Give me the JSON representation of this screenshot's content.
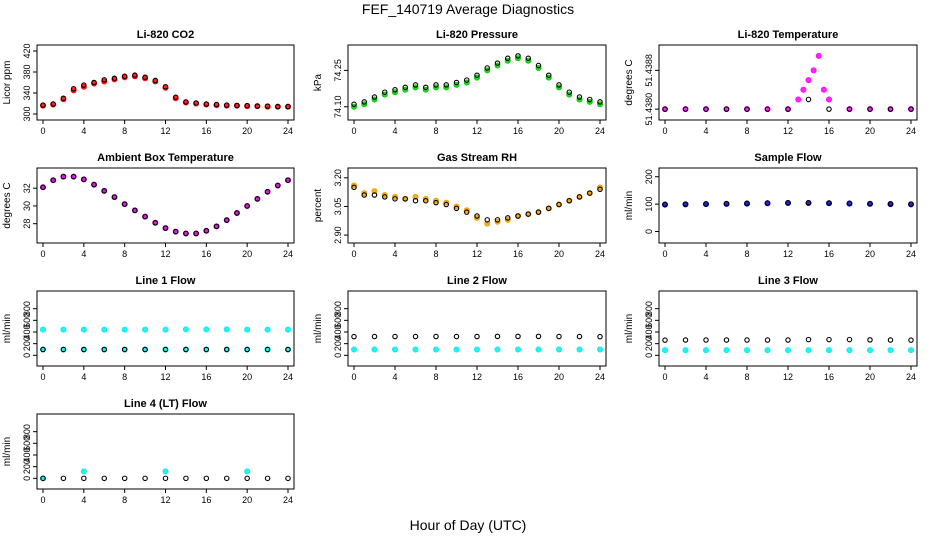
{
  "figure": {
    "title": "FEF_140719  Average Diagnostics",
    "xlabel": "Hour of Day (UTC)"
  },
  "chart_data": [
    {
      "type": "scatter",
      "title": "Li-820 CO2",
      "ylabel": "Licor ppm",
      "xlim": [
        0,
        24
      ],
      "ylim": [
        300,
        420
      ],
      "xticks": [
        "0",
        "4",
        "8",
        "12",
        "16",
        "20",
        "24"
      ],
      "yticks": [
        "300",
        "340",
        "380",
        "420"
      ],
      "series": [
        {
          "color": "#ff0000",
          "x": [
            0,
            1,
            2,
            3,
            4,
            5,
            6,
            7,
            8,
            9,
            10,
            11,
            12,
            13,
            14,
            15,
            16,
            17,
            18,
            19,
            20,
            21,
            22,
            23,
            24
          ],
          "y": [
            316,
            318,
            328,
            345,
            352,
            358,
            362,
            366,
            370,
            372,
            368,
            362,
            350,
            330,
            322,
            320,
            318,
            317,
            316,
            316,
            315,
            315,
            314,
            314,
            314
          ]
        },
        {
          "color": "#000000",
          "x": [
            0,
            1,
            2,
            3,
            4,
            5,
            6,
            7,
            8,
            9,
            10,
            11,
            12,
            13,
            14,
            15,
            16,
            17,
            18,
            19,
            20,
            21,
            22,
            23,
            24
          ],
          "y": [
            317,
            319,
            330,
            348,
            355,
            360,
            365,
            368,
            372,
            374,
            370,
            364,
            352,
            332,
            323,
            321,
            319,
            318,
            317,
            316,
            316,
            315,
            315,
            314,
            314
          ]
        }
      ]
    },
    {
      "type": "scatter",
      "title": "Li-820 Pressure",
      "ylabel": "kPa",
      "xlim": [
        0,
        24
      ],
      "ylim": [
        74.07,
        74.33
      ],
      "xticks": [
        "0",
        "4",
        "8",
        "12",
        "16",
        "20",
        "24"
      ],
      "yticks": [
        "74.10",
        "74.25"
      ],
      "series": [
        {
          "color": "#00cc00",
          "x": [
            0,
            1,
            2,
            3,
            4,
            5,
            6,
            7,
            8,
            9,
            10,
            11,
            12,
            13,
            14,
            15,
            16,
            17,
            18,
            19,
            20,
            21,
            22,
            23,
            24
          ],
          "y": [
            74.1,
            74.11,
            74.13,
            74.15,
            74.16,
            74.17,
            74.18,
            74.17,
            74.18,
            74.18,
            74.19,
            74.2,
            74.22,
            74.25,
            74.27,
            74.29,
            74.3,
            74.29,
            74.26,
            74.22,
            74.18,
            74.15,
            74.13,
            74.12,
            74.11
          ]
        },
        {
          "color": "#000000",
          "x": [
            0,
            1,
            2,
            3,
            4,
            5,
            6,
            7,
            8,
            9,
            10,
            11,
            12,
            13,
            14,
            15,
            16,
            17,
            18,
            19,
            20,
            21,
            22,
            23,
            24
          ],
          "y": [
            74.11,
            74.12,
            74.14,
            74.16,
            74.17,
            74.18,
            74.19,
            74.18,
            74.19,
            74.19,
            74.2,
            74.21,
            74.23,
            74.26,
            74.28,
            74.3,
            74.31,
            74.3,
            74.27,
            74.23,
            74.19,
            74.16,
            74.14,
            74.13,
            74.12
          ]
        }
      ]
    },
    {
      "type": "scatter",
      "title": "Li-820 Temperature",
      "ylabel": "degrees C",
      "xlim": [
        0,
        24
      ],
      "ylim": [
        51.4379,
        51.4392
      ],
      "xticks": [
        "0",
        "4",
        "8",
        "12",
        "16",
        "20",
        "24"
      ],
      "yticks": [
        "51.4380",
        "51.4388"
      ],
      "series": [
        {
          "color": "#ff00ff",
          "x": [
            0,
            2,
            4,
            6,
            8,
            10,
            12,
            13,
            13.5,
            14,
            14.5,
            15,
            15.5,
            16,
            18,
            20,
            22,
            24
          ],
          "y": [
            51.438,
            51.438,
            51.438,
            51.438,
            51.438,
            51.438,
            51.438,
            51.4382,
            51.4384,
            51.4386,
            51.4388,
            51.4391,
            51.4384,
            51.4382,
            51.438,
            51.438,
            51.438,
            51.438
          ]
        },
        {
          "color": "#000000",
          "x": [
            0,
            2,
            4,
            6,
            8,
            10,
            12,
            14,
            16,
            18,
            20,
            22,
            24
          ],
          "y": [
            51.438,
            51.438,
            51.438,
            51.438,
            51.438,
            51.438,
            51.438,
            51.4382,
            51.438,
            51.438,
            51.438,
            51.438,
            51.438
          ]
        }
      ]
    },
    {
      "type": "scatter",
      "title": "Ambient Box Temperature",
      "ylabel": "degrees C",
      "xlim": [
        0,
        24
      ],
      "ylim": [
        26.5,
        33.6
      ],
      "xticks": [
        "0",
        "4",
        "8",
        "12",
        "16",
        "20",
        "24"
      ],
      "yticks": [
        "28",
        "30",
        "32"
      ],
      "series": [
        {
          "color": "#cc00cc",
          "x": [
            0,
            1,
            2,
            3,
            4,
            5,
            6,
            7,
            8,
            9,
            10,
            11,
            12,
            13,
            14,
            15,
            16,
            17,
            18,
            19,
            20,
            21,
            22,
            23,
            24
          ],
          "y": [
            32.1,
            32.9,
            33.3,
            33.3,
            33.0,
            32.4,
            31.7,
            31.0,
            30.2,
            29.5,
            28.8,
            28.1,
            27.5,
            27.1,
            26.9,
            26.9,
            27.2,
            27.7,
            28.4,
            29.2,
            30.0,
            30.8,
            31.6,
            32.3,
            32.9
          ]
        },
        {
          "color": "#000000",
          "x": [
            0,
            1,
            2,
            3,
            4,
            5,
            6,
            7,
            8,
            9,
            10,
            11,
            12,
            13,
            14,
            15,
            16,
            17,
            18,
            19,
            20,
            21,
            22,
            23,
            24
          ],
          "y": [
            32.1,
            32.9,
            33.3,
            33.3,
            33.0,
            32.4,
            31.7,
            31.0,
            30.2,
            29.5,
            28.8,
            28.1,
            27.5,
            27.1,
            26.9,
            26.9,
            27.2,
            27.7,
            28.4,
            29.2,
            30.0,
            30.8,
            31.6,
            32.3,
            32.9
          ]
        }
      ]
    },
    {
      "type": "scatter",
      "title": "Gas Stream RH",
      "ylabel": "percent",
      "xlim": [
        0,
        24
      ],
      "ylim": [
        2.89,
        3.22
      ],
      "xticks": [
        "0",
        "4",
        "8",
        "12",
        "16",
        "20",
        "24"
      ],
      "yticks": [
        "2.90",
        "3.05",
        "3.20"
      ],
      "series": [
        {
          "color": "#f0a000",
          "x": [
            0,
            1,
            2,
            3,
            4,
            5,
            6,
            7,
            8,
            9,
            10,
            11,
            12,
            13,
            14,
            15,
            16,
            17,
            18,
            19,
            20,
            21,
            22,
            23,
            24
          ],
          "y": [
            3.16,
            3.12,
            3.13,
            3.11,
            3.1,
            3.09,
            3.1,
            3.09,
            3.08,
            3.07,
            3.05,
            3.03,
            2.99,
            2.96,
            2.97,
            2.98,
            3.0,
            3.01,
            3.02,
            3.04,
            3.06,
            3.08,
            3.1,
            3.12,
            3.15
          ]
        },
        {
          "color": "#000000",
          "x": [
            0,
            1,
            2,
            3,
            4,
            5,
            6,
            7,
            8,
            9,
            10,
            11,
            12,
            13,
            14,
            15,
            16,
            17,
            18,
            19,
            20,
            21,
            22,
            23,
            24
          ],
          "y": [
            3.15,
            3.11,
            3.11,
            3.1,
            3.09,
            3.09,
            3.08,
            3.08,
            3.07,
            3.06,
            3.04,
            3.02,
            3.0,
            2.98,
            2.98,
            2.99,
            3.0,
            3.01,
            3.02,
            3.04,
            3.06,
            3.08,
            3.1,
            3.12,
            3.14
          ]
        }
      ]
    },
    {
      "type": "scatter",
      "title": "Sample Flow",
      "ylabel": "ml/min",
      "xlim": [
        0,
        24
      ],
      "ylim": [
        -20,
        210
      ],
      "xticks": [
        "0",
        "4",
        "8",
        "12",
        "16",
        "20",
        "24"
      ],
      "yticks": [
        "0",
        "100",
        "200"
      ],
      "series": [
        {
          "color": "#0000cc",
          "x": [
            0,
            2,
            4,
            6,
            8,
            10,
            12,
            14,
            16,
            18,
            20,
            22,
            24
          ],
          "y": [
            98,
            99,
            100,
            101,
            102,
            103,
            104,
            104,
            103,
            102,
            101,
            100,
            99
          ]
        },
        {
          "color": "#000000",
          "x": [
            0,
            2,
            4,
            6,
            8,
            10,
            12,
            14,
            16,
            18,
            20,
            22,
            24
          ],
          "y": [
            99,
            100,
            101,
            102,
            103,
            104,
            105,
            105,
            104,
            103,
            102,
            101,
            100
          ]
        }
      ]
    },
    {
      "type": "scatter",
      "title": "Line 1 Flow",
      "ylabel": "ml/min",
      "xlim": [
        0,
        24
      ],
      "ylim": [
        -80,
        1000
      ],
      "xticks": [
        "0",
        "4",
        "8",
        "12",
        "16",
        "20",
        "24"
      ],
      "yticks": [
        "0",
        "200",
        "400",
        "600",
        "800"
      ],
      "series": [
        {
          "color": "#00eeee",
          "x": [
            0,
            2,
            4,
            6,
            8,
            10,
            12,
            14,
            16,
            18,
            20,
            22,
            24
          ],
          "y": [
            440,
            440,
            440,
            440,
            440,
            440,
            440,
            445,
            445,
            445,
            440,
            440,
            440
          ]
        },
        {
          "color": "#00eeee",
          "x": [
            0,
            2,
            4,
            6,
            8,
            10,
            12,
            14,
            16,
            18,
            20,
            22,
            24
          ],
          "y": [
            100,
            100,
            100,
            100,
            100,
            100,
            100,
            100,
            100,
            100,
            100,
            100,
            100
          ]
        },
        {
          "color": "#000000",
          "x": [
            0,
            2,
            4,
            6,
            8,
            10,
            12,
            14,
            16,
            18,
            20,
            22,
            24
          ],
          "y": [
            100,
            100,
            100,
            100,
            100,
            100,
            100,
            100,
            100,
            100,
            100,
            100,
            100
          ]
        }
      ]
    },
    {
      "type": "scatter",
      "title": "Line 2 Flow",
      "ylabel": "ml/min",
      "xlim": [
        0,
        24
      ],
      "ylim": [
        -80,
        1000
      ],
      "xticks": [
        "0",
        "4",
        "8",
        "12",
        "16",
        "20",
        "24"
      ],
      "yticks": [
        "0",
        "200",
        "400",
        "600",
        "800"
      ],
      "series": [
        {
          "color": "#00eeee",
          "x": [
            0,
            2,
            4,
            6,
            8,
            10,
            12,
            14,
            16,
            18,
            20,
            22,
            24
          ],
          "y": [
            100,
            100,
            100,
            100,
            100,
            100,
            100,
            100,
            100,
            100,
            100,
            100,
            100
          ]
        },
        {
          "color": "#000000",
          "x": [
            0,
            2,
            4,
            6,
            8,
            10,
            12,
            14,
            16,
            18,
            20,
            22,
            24
          ],
          "y": [
            320,
            322,
            322,
            322,
            322,
            322,
            322,
            325,
            325,
            325,
            322,
            322,
            320
          ]
        }
      ]
    },
    {
      "type": "scatter",
      "title": "Line 3 Flow",
      "ylabel": "ml/min",
      "xlim": [
        0,
        24
      ],
      "ylim": [
        -80,
        1000
      ],
      "xticks": [
        "0",
        "4",
        "8",
        "12",
        "16",
        "20",
        "24"
      ],
      "yticks": [
        "0",
        "200",
        "400",
        "600",
        "800"
      ],
      "series": [
        {
          "color": "#00eeee",
          "x": [
            0,
            2,
            4,
            6,
            8,
            10,
            12,
            14,
            16,
            18,
            20,
            22,
            24
          ],
          "y": [
            90,
            90,
            90,
            90,
            90,
            90,
            90,
            90,
            90,
            90,
            90,
            90,
            90
          ]
        },
        {
          "color": "#000000",
          "x": [
            0,
            2,
            4,
            6,
            8,
            10,
            12,
            14,
            16,
            18,
            20,
            22,
            24
          ],
          "y": [
            260,
            262,
            262,
            262,
            262,
            262,
            262,
            270,
            270,
            270,
            265,
            262,
            260
          ]
        }
      ]
    },
    {
      "type": "scatter",
      "title": "Line 4 (LT) Flow",
      "ylabel": "ml/min",
      "xlim": [
        0,
        24
      ],
      "ylim": [
        -80,
        1000
      ],
      "xticks": [
        "0",
        "4",
        "8",
        "12",
        "16",
        "20",
        "24"
      ],
      "yticks": [
        "0",
        "200",
        "400",
        "600",
        "800"
      ],
      "series": [
        {
          "color": "#00eeee",
          "x": [
            0,
            4,
            12,
            20
          ],
          "y": [
            0,
            120,
            120,
            120
          ]
        },
        {
          "color": "#000000",
          "x": [
            0,
            2,
            4,
            6,
            8,
            10,
            12,
            14,
            16,
            18,
            20,
            22,
            24
          ],
          "y": [
            0,
            0,
            0,
            0,
            0,
            0,
            0,
            0,
            0,
            0,
            0,
            0,
            0
          ]
        }
      ]
    }
  ]
}
